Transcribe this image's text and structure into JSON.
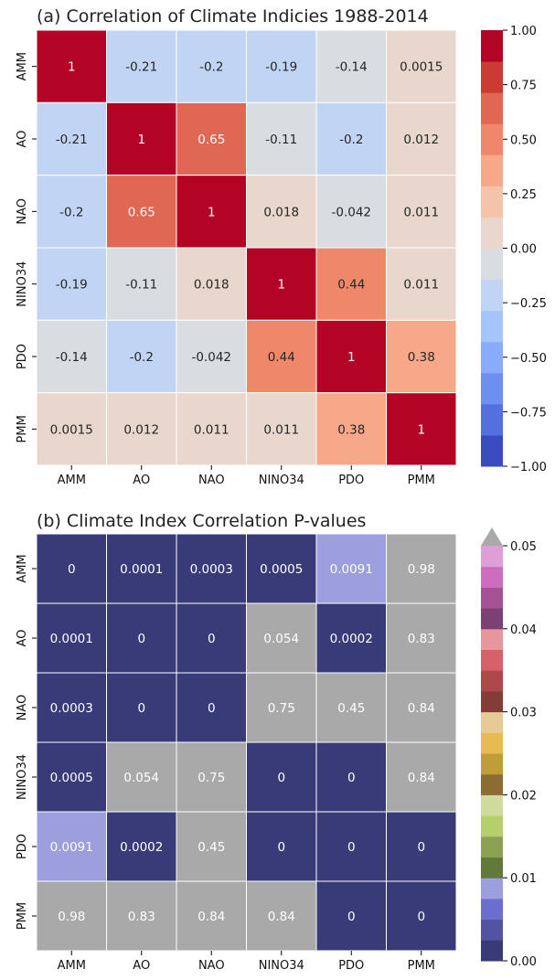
{
  "chart_data": [
    {
      "type": "heatmap",
      "title": "(a) Correlation of Climate Indicies 1988-2014",
      "rows": [
        "AMM",
        "AO",
        "NAO",
        "NINO34",
        "PDO",
        "PMM"
      ],
      "columns": [
        "AMM",
        "AO",
        "NAO",
        "NINO34",
        "PDO",
        "PMM"
      ],
      "values": [
        [
          1,
          -0.21,
          -0.2,
          -0.19,
          -0.14,
          0.0015
        ],
        [
          -0.21,
          1,
          0.65,
          -0.11,
          -0.2,
          0.012
        ],
        [
          -0.2,
          0.65,
          1,
          0.018,
          -0.042,
          0.011
        ],
        [
          -0.19,
          -0.11,
          0.018,
          1,
          0.44,
          0.011
        ],
        [
          -0.14,
          -0.2,
          -0.042,
          0.44,
          1,
          0.38
        ],
        [
          0.0015,
          0.012,
          0.011,
          0.011,
          0.38,
          1
        ]
      ],
      "labels": [
        [
          "1",
          "-0.21",
          "-0.2",
          "-0.19",
          "-0.14",
          "0.0015"
        ],
        [
          "-0.21",
          "1",
          "0.65",
          "-0.11",
          "-0.2",
          "0.012"
        ],
        [
          "-0.2",
          "0.65",
          "1",
          "0.018",
          "-0.042",
          "0.011"
        ],
        [
          "-0.19",
          "-0.11",
          "0.018",
          "1",
          "0.44",
          "0.011"
        ],
        [
          "-0.14",
          "-0.2",
          "-0.042",
          "0.44",
          "1",
          "0.38"
        ],
        [
          "0.0015",
          "0.012",
          "0.011",
          "0.011",
          "0.38",
          "1"
        ]
      ],
      "colorbar": {
        "range": [
          -1,
          1
        ],
        "ticks": [
          "1.00",
          "0.75",
          "0.50",
          "0.25",
          "0.00",
          "−0.25",
          "−0.50",
          "−0.75",
          "−1.00"
        ],
        "colors_bottom_to_top": [
          "#3b4cc0",
          "#5470de",
          "#6d8ff0",
          "#8aabfd",
          "#a6c4fe",
          "#c1d4f4",
          "#d9dce1",
          "#e9d6cc",
          "#f5c3a9",
          "#f7a889",
          "#ef886b",
          "#e06753",
          "#c93b33",
          "#b40426"
        ],
        "dark_text_bins": [
          2,
          3,
          4,
          5,
          6,
          7,
          8,
          9,
          10
        ]
      }
    },
    {
      "type": "heatmap",
      "title": "(b) Climate Index Correlation P-values",
      "rows": [
        "AMM",
        "AO",
        "NAO",
        "NINO34",
        "PDO",
        "PMM"
      ],
      "columns": [
        "AMM",
        "AO",
        "NAO",
        "NINO34",
        "PDO",
        "PMM"
      ],
      "values": [
        [
          0,
          0.0001,
          0.0003,
          0.0005,
          0.0091,
          0.98
        ],
        [
          0.0001,
          0,
          0,
          0.054,
          0.0002,
          0.83
        ],
        [
          0.0003,
          0,
          0,
          0.75,
          0.45,
          0.84
        ],
        [
          0.0005,
          0.054,
          0.75,
          0,
          0,
          0.84
        ],
        [
          0.0091,
          0.0002,
          0.45,
          0,
          0,
          0
        ],
        [
          0.98,
          0.83,
          0.84,
          0.84,
          0,
          0
        ]
      ],
      "labels": [
        [
          "0",
          "0.0001",
          "0.0003",
          "0.0005",
          "0.0091",
          "0.98"
        ],
        [
          "0.0001",
          "0",
          "0",
          "0.054",
          "0.0002",
          "0.83"
        ],
        [
          "0.0003",
          "0",
          "0",
          "0.75",
          "0.45",
          "0.84"
        ],
        [
          "0.0005",
          "0.054",
          "0.75",
          "0",
          "0",
          "0.84"
        ],
        [
          "0.0091",
          "0.0002",
          "0.45",
          "0",
          "0",
          "0"
        ],
        [
          "0.98",
          "0.83",
          "0.84",
          "0.84",
          "0",
          "0"
        ]
      ],
      "colorbar": {
        "range": [
          0,
          0.05
        ],
        "ticks": [
          "0.05",
          "0.04",
          "0.03",
          "0.02",
          "0.01",
          "0.00"
        ],
        "colors_bottom_to_top": [
          "#393b79",
          "#5254a3",
          "#6b6ecf",
          "#9c9ede",
          "#637939",
          "#8ca252",
          "#b5cf6b",
          "#cedb9c",
          "#8c6d31",
          "#bd9e39",
          "#e7ba52",
          "#e7cb94",
          "#843c39",
          "#ad494a",
          "#d6616b",
          "#e7969c",
          "#7b4173",
          "#a55194",
          "#ce6dbd",
          "#de9ed6"
        ],
        "over_color": "#a9a9a9"
      }
    }
  ]
}
